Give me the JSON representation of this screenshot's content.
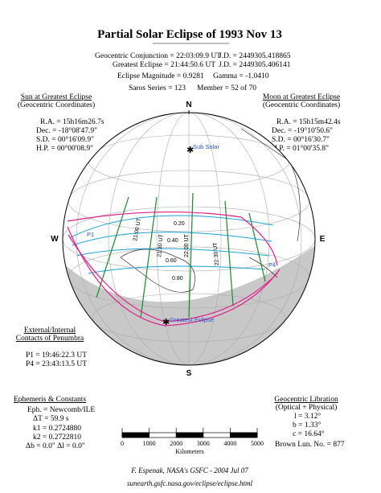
{
  "header": {
    "title": "Partial Solar Eclipse of  1993 Nov 13",
    "conjunction": "Geocentric Conjunction = 22:03:09.9 UT",
    "conjunction_jd": "J.D. = 2449305.418865",
    "greatest": "Greatest Eclipse = 21:44:50.6 UT",
    "greatest_jd": "J.D. = 2449305.406141",
    "magnitude": "Eclipse Magnitude = 0.9281",
    "gamma": "Gamma = -1.0410",
    "saros": "Saros Series = 123",
    "member": "Member = 52 of 70"
  },
  "sun": {
    "title": "Sun at Greatest Eclipse",
    "subtitle": "(Geocentric Coordinates)",
    "lines": [
      "R.A. = 15h16m26.7s",
      "Dec. = -18°08'47.9\"",
      "S.D. = 00°16'09.9\"",
      "H.P. = 00°00'08.9\""
    ]
  },
  "moon": {
    "title": "Moon at Greatest Eclipse",
    "subtitle": "(Geocentric Coordinates)",
    "lines": [
      "R.A. = 15h15m42.4s",
      "Dec. = -19°10'50.6\"",
      "S.D. = 00°16'30.7\"",
      "H.P. = 01°00'35.8\""
    ]
  },
  "compass": {
    "north": "N",
    "south": "S",
    "west": "W",
    "east": "E"
  },
  "map": {
    "sub_solar": "Sub Solar",
    "greatest_eclipse": "Greatest Eclipse",
    "p1": "P1",
    "p4": "P4",
    "magnitudes": [
      "0.20",
      "0.40",
      "0.60",
      "0.80"
    ],
    "times": [
      "21:00 UT",
      "21:30 UT",
      "22:00 UT",
      "22:30 UT"
    ]
  },
  "contacts": {
    "title": "External/Internal",
    "subtitle": "Contacts of Penumbra",
    "lines": [
      "P1 = 19:46:22.3 UT",
      "P4 = 23:43:13.5 UT"
    ]
  },
  "scale": {
    "ticks": [
      "0",
      "1000",
      "2000",
      "3000",
      "4000",
      "5000"
    ],
    "unit": "Kilometers"
  },
  "ephemeris": {
    "title": "Ephemeris & Constants",
    "lines": [
      "Eph. = Newcomb/ILE",
      "ΔT =    59.9 s",
      "k1 = 0.2724880",
      "k2 = 0.2722810",
      "Δb =  0.0\"   Δl =  0.0\""
    ]
  },
  "libration": {
    "title": "Geocentric Libration",
    "subtitle": "(Optical + Physical)",
    "lines": [
      "l =   3.12°",
      "b =   1.33°",
      "c =  16.64°"
    ],
    "brown": "Brown Lun. No. =  877"
  },
  "footer": {
    "credit": "F. Espenak, NASA's GSFC -  2004 Jul 07",
    "url": "sunearth.gsfc.nasa.gov/eclipse/eclipse.html"
  }
}
